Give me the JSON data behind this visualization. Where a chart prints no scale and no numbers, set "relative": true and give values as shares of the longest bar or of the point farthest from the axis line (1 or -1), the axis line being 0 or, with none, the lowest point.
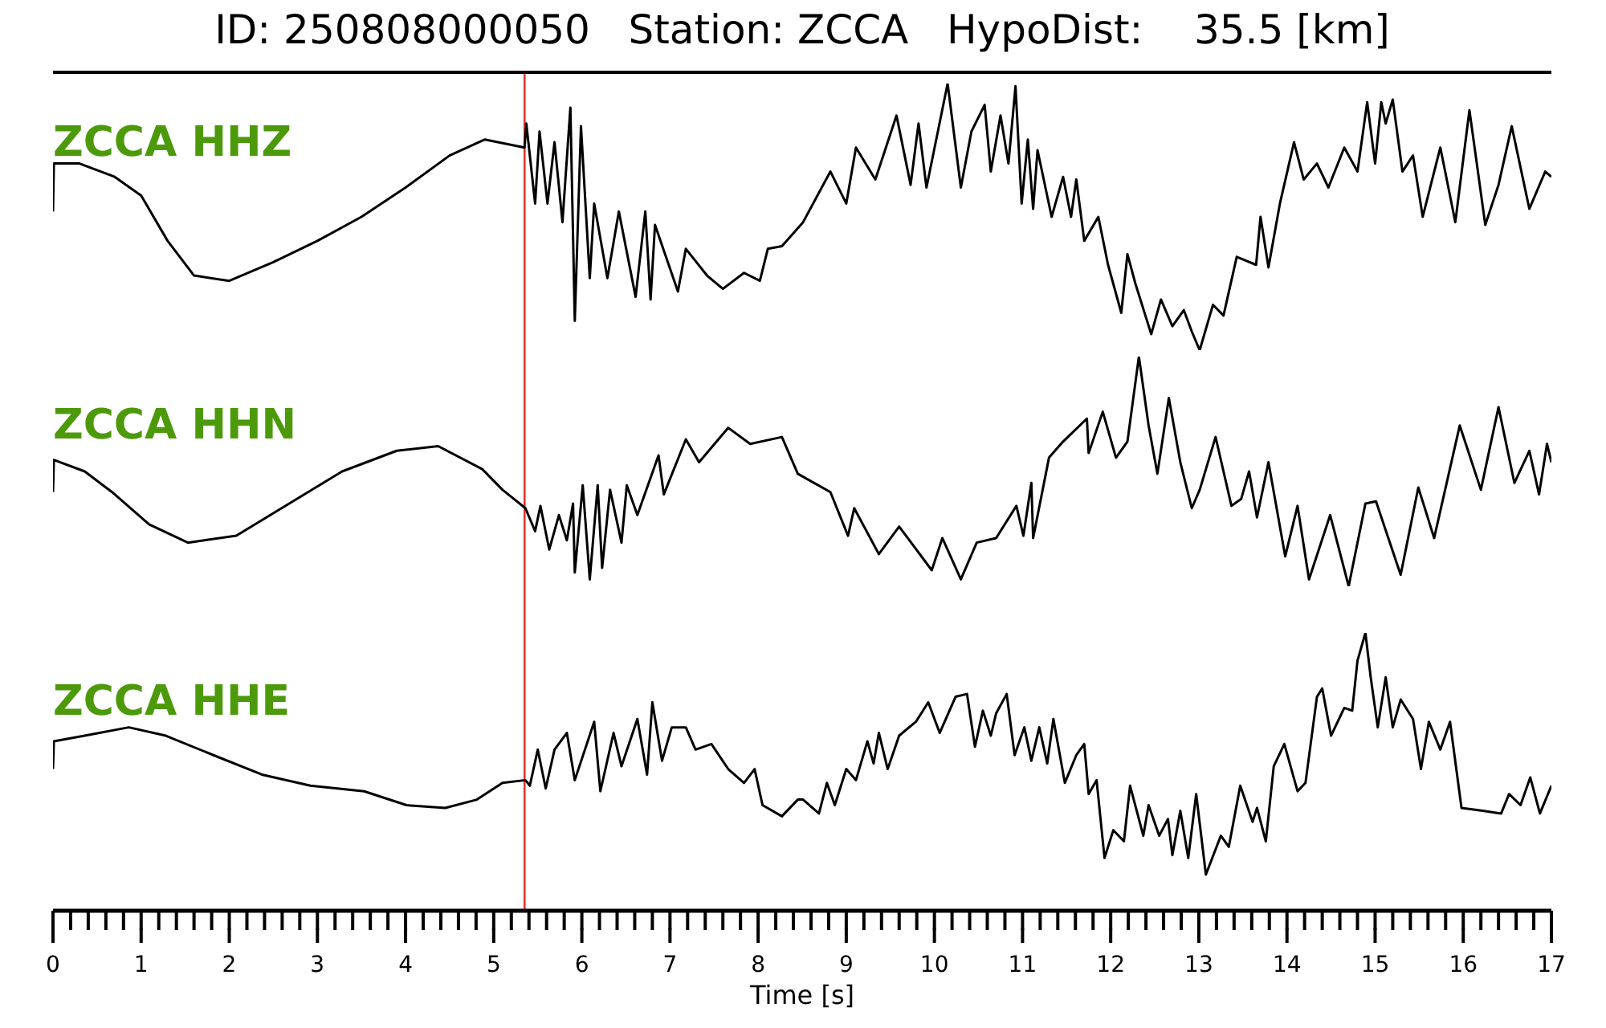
{
  "chart_data": [
    {
      "type": "line",
      "title": "ID: 250808000050   Station: ZCCA   HypoDist:    35.5 [km]",
      "relative": true,
      "xlim": [
        0,
        17
      ],
      "tick_labels": false,
      "ref_lines": [
        {
          "axis": "x",
          "value": 5.35,
          "color": "#e8322a"
        }
      ],
      "series": [
        {
          "name": "ZCCA HHZ",
          "color": "#000000",
          "x": [
            0,
            0.01,
            0.3,
            0.7,
            1.0,
            1.3,
            1.6,
            2.0,
            2.5,
            3.0,
            3.5,
            4.0,
            4.5,
            4.9,
            5.35,
            5.37,
            5.47,
            5.52,
            5.61,
            5.69,
            5.78,
            5.87,
            5.92,
            5.99,
            6.09,
            6.14,
            6.29,
            6.42,
            6.61,
            6.72,
            6.78,
            6.83,
            7.09,
            7.18,
            7.42,
            7.6,
            7.84,
            8.02,
            8.11,
            8.27,
            8.51,
            8.82,
            9.0,
            9.11,
            9.33,
            9.57,
            9.73,
            9.82,
            9.91,
            10.15,
            10.3,
            10.42,
            10.57,
            10.64,
            10.75,
            10.84,
            10.92,
            10.99,
            11.06,
            11.12,
            11.17,
            11.33,
            11.46,
            11.55,
            11.61,
            11.7,
            11.86,
            11.97,
            12.12,
            12.19,
            12.28,
            12.46,
            12.57,
            12.7,
            12.83,
            12.92,
            13.01,
            13.16,
            13.28,
            13.43,
            13.65,
            13.7,
            13.79,
            13.92,
            14.08,
            14.19,
            14.34,
            14.47,
            14.65,
            14.8,
            14.91,
            15.0,
            15.07,
            15.12,
            15.2,
            15.31,
            15.43,
            15.54,
            15.74,
            15.91,
            16.07,
            16.25,
            16.4,
            16.55,
            16.75,
            16.93,
            17.0
          ],
          "values": [
            0.52,
            0.7,
            0.7,
            0.65,
            0.58,
            0.41,
            0.28,
            0.26,
            0.33,
            0.41,
            0.5,
            0.61,
            0.73,
            0.79,
            0.76,
            0.85,
            0.55,
            0.82,
            0.55,
            0.78,
            0.48,
            0.91,
            0.11,
            0.84,
            0.27,
            0.55,
            0.27,
            0.52,
            0.2,
            0.52,
            0.19,
            0.47,
            0.22,
            0.38,
            0.28,
            0.23,
            0.29,
            0.26,
            0.38,
            0.39,
            0.48,
            0.67,
            0.55,
            0.76,
            0.64,
            0.88,
            0.62,
            0.85,
            0.61,
            1.0,
            0.61,
            0.82,
            0.92,
            0.67,
            0.88,
            0.7,
            0.99,
            0.55,
            0.79,
            0.53,
            0.75,
            0.5,
            0.65,
            0.5,
            0.64,
            0.41,
            0.5,
            0.32,
            0.14,
            0.36,
            0.25,
            0.06,
            0.19,
            0.09,
            0.15,
            0.07,
            0,
            0.17,
            0.13,
            0.35,
            0.32,
            0.5,
            0.31,
            0.55,
            0.78,
            0.64,
            0.7,
            0.61,
            0.76,
            0.67,
            0.93,
            0.7,
            0.93,
            0.85,
            0.94,
            0.67,
            0.73,
            0.5,
            0.76,
            0.48,
            0.9,
            0.47,
            0.62,
            0.84,
            0.53,
            0.67,
            0.65
          ]
        }
      ]
    },
    {
      "type": "line",
      "relative": true,
      "xlim": [
        0,
        17
      ],
      "tick_labels": false,
      "ref_lines": [
        {
          "axis": "x",
          "value": 5.35,
          "color": "#e8322a"
        }
      ],
      "series": [
        {
          "name": "ZCCA HHN",
          "color": "#000000",
          "x": [
            0,
            0.01,
            0.36,
            0.67,
            1.09,
            1.53,
            2.08,
            2.68,
            3.28,
            3.9,
            4.37,
            4.87,
            5.1,
            5.36,
            5.47,
            5.53,
            5.63,
            5.74,
            5.83,
            5.9,
            5.92,
            6.01,
            6.09,
            6.18,
            6.23,
            6.32,
            6.45,
            6.51,
            6.63,
            6.87,
            6.93,
            7.18,
            7.33,
            7.66,
            7.91,
            8.27,
            8.45,
            8.82,
            9.02,
            9.09,
            9.37,
            9.6,
            9.97,
            10.09,
            10.3,
            10.48,
            10.7,
            10.93,
            11.01,
            11.1,
            11.12,
            11.3,
            11.46,
            11.73,
            11.75,
            11.91,
            12.06,
            12.19,
            12.32,
            12.43,
            12.53,
            12.66,
            12.79,
            12.92,
            13.01,
            13.19,
            13.37,
            13.48,
            13.57,
            13.66,
            13.79,
            13.98,
            14.12,
            14.25,
            14.49,
            14.7,
            14.89,
            15.01,
            15.29,
            15.49,
            15.67,
            15.96,
            16.2,
            16.4,
            16.58,
            16.75,
            16.86,
            16.95,
            17.0
          ],
          "values": [
            0.41,
            0.55,
            0.5,
            0.41,
            0.27,
            0.19,
            0.22,
            0.36,
            0.5,
            0.59,
            0.61,
            0.51,
            0.42,
            0.34,
            0.24,
            0.35,
            0.16,
            0.31,
            0.2,
            0.36,
            0.06,
            0.44,
            0.03,
            0.44,
            0.08,
            0.42,
            0.19,
            0.44,
            0.31,
            0.57,
            0.4,
            0.64,
            0.54,
            0.69,
            0.62,
            0.65,
            0.49,
            0.41,
            0.22,
            0.34,
            0.14,
            0.26,
            0.07,
            0.21,
            0.03,
            0.19,
            0.21,
            0.35,
            0.22,
            0.45,
            0.21,
            0.56,
            0.63,
            0.73,
            0.58,
            0.76,
            0.56,
            0.63,
            1.0,
            0.7,
            0.49,
            0.82,
            0.54,
            0.34,
            0.42,
            0.65,
            0.35,
            0.38,
            0.5,
            0.3,
            0.54,
            0.13,
            0.35,
            0.03,
            0.31,
            0,
            0.36,
            0.37,
            0.05,
            0.43,
            0.21,
            0.7,
            0.42,
            0.78,
            0.45,
            0.59,
            0.4,
            0.62,
            0.54
          ]
        }
      ]
    },
    {
      "type": "line",
      "relative": true,
      "xlim": [
        0,
        17
      ],
      "tick_labels": "x",
      "xlabel": "Time [s]",
      "xticks": [
        0,
        {
          "value": 0.2,
          "label": null
        },
        {
          "value": 0.4,
          "label": null
        },
        {
          "value": 0.6,
          "label": null
        },
        {
          "value": 0.8,
          "label": null
        },
        1,
        {
          "value": 1.2,
          "label": null
        },
        {
          "value": 1.4,
          "label": null
        },
        {
          "value": 1.6,
          "label": null
        },
        {
          "value": 1.8,
          "label": null
        },
        2,
        {
          "value": 2.2,
          "label": null
        },
        {
          "value": 2.4,
          "label": null
        },
        {
          "value": 2.6,
          "label": null
        },
        {
          "value": 2.8,
          "label": null
        },
        3,
        {
          "value": 3.2,
          "label": null
        },
        {
          "value": 3.4,
          "label": null
        },
        {
          "value": 3.6,
          "label": null
        },
        {
          "value": 3.8,
          "label": null
        },
        4,
        {
          "value": 4.2,
          "label": null
        },
        {
          "value": 4.4,
          "label": null
        },
        {
          "value": 4.6,
          "label": null
        },
        {
          "value": 4.8,
          "label": null
        },
        5,
        {
          "value": 5.2,
          "label": null
        },
        {
          "value": 5.4,
          "label": null
        },
        {
          "value": 5.6,
          "label": null
        },
        {
          "value": 5.8,
          "label": null
        },
        6,
        {
          "value": 6.2,
          "label": null
        },
        {
          "value": 6.4,
          "label": null
        },
        {
          "value": 6.6,
          "label": null
        },
        {
          "value": 6.8,
          "label": null
        },
        7,
        {
          "value": 7.2,
          "label": null
        },
        {
          "value": 7.4,
          "label": null
        },
        {
          "value": 7.6,
          "label": null
        },
        {
          "value": 7.8,
          "label": null
        },
        8,
        {
          "value": 8.2,
          "label": null
        },
        {
          "value": 8.4,
          "label": null
        },
        {
          "value": 8.6,
          "label": null
        },
        {
          "value": 8.8,
          "label": null
        },
        9,
        {
          "value": 9.2,
          "label": null
        },
        {
          "value": 9.4,
          "label": null
        },
        {
          "value": 9.6,
          "label": null
        },
        {
          "value": 9.8,
          "label": null
        },
        10,
        {
          "value": 10.2,
          "label": null
        },
        {
          "value": 10.4,
          "label": null
        },
        {
          "value": 10.6,
          "label": null
        },
        {
          "value": 10.8,
          "label": null
        },
        11,
        {
          "value": 11.2,
          "label": null
        },
        {
          "value": 11.4,
          "label": null
        },
        {
          "value": 11.6,
          "label": null
        },
        {
          "value": 11.8,
          "label": null
        },
        12,
        {
          "value": 12.2,
          "label": null
        },
        {
          "value": 12.4,
          "label": null
        },
        {
          "value": 12.6,
          "label": null
        },
        {
          "value": 12.8,
          "label": null
        },
        13,
        {
          "value": 13.2,
          "label": null
        },
        {
          "value": 13.4,
          "label": null
        },
        {
          "value": 13.6,
          "label": null
        },
        {
          "value": 13.8,
          "label": null
        },
        14,
        {
          "value": 14.2,
          "label": null
        },
        {
          "value": 14.4,
          "label": null
        },
        {
          "value": 14.6,
          "label": null
        },
        {
          "value": 14.8,
          "label": null
        },
        15,
        {
          "value": 15.2,
          "label": null
        },
        {
          "value": 15.4,
          "label": null
        },
        {
          "value": 15.6,
          "label": null
        },
        {
          "value": 15.8,
          "label": null
        },
        16,
        {
          "value": 16.2,
          "label": null
        },
        {
          "value": 16.4,
          "label": null
        },
        {
          "value": 16.6,
          "label": null
        },
        {
          "value": 16.8,
          "label": null
        },
        17
      ],
      "ref_lines": [
        {
          "axis": "x",
          "value": 5.35,
          "color": "#e8322a"
        }
      ],
      "series": [
        {
          "name": "ZCCA HHE",
          "color": "#000000",
          "x": [
            0,
            0.01,
            0.36,
            0.86,
            1.28,
            1.82,
            2.37,
            2.92,
            3.53,
            4.01,
            4.45,
            4.81,
            5.1,
            5.36,
            5.41,
            5.5,
            5.59,
            5.69,
            5.83,
            5.92,
            6.14,
            6.21,
            6.36,
            6.45,
            6.63,
            6.74,
            6.8,
            6.91,
            7.02,
            7.18,
            7.29,
            7.47,
            7.66,
            7.84,
            7.96,
            8.05,
            8.27,
            8.45,
            8.51,
            8.69,
            8.78,
            8.87,
            9.0,
            9.11,
            9.24,
            9.31,
            9.37,
            9.47,
            9.6,
            9.79,
            9.93,
            10.06,
            10.24,
            10.37,
            10.46,
            10.55,
            10.64,
            10.7,
            10.82,
            10.91,
            11.02,
            11.1,
            11.19,
            11.28,
            11.35,
            11.48,
            11.61,
            11.7,
            11.75,
            11.84,
            11.93,
            12.03,
            12.15,
            12.22,
            12.37,
            12.43,
            12.55,
            12.65,
            12.7,
            12.79,
            12.88,
            12.97,
            13.08,
            13.25,
            13.34,
            13.47,
            13.61,
            13.66,
            13.76,
            13.85,
            13.97,
            14.12,
            14.21,
            14.34,
            14.4,
            14.5,
            14.65,
            14.74,
            14.8,
            14.89,
            14.95,
            15.03,
            15.12,
            15.2,
            15.29,
            15.43,
            15.52,
            15.61,
            15.74,
            15.85,
            15.98,
            16.22,
            16.43,
            16.52,
            16.65,
            16.76,
            16.87,
            17.0
          ],
          "values": [
            0.51,
            0.61,
            0.63,
            0.66,
            0.63,
            0.56,
            0.49,
            0.45,
            0.43,
            0.38,
            0.37,
            0.4,
            0.46,
            0.47,
            0.45,
            0.58,
            0.44,
            0.58,
            0.64,
            0.47,
            0.68,
            0.43,
            0.64,
            0.52,
            0.69,
            0.49,
            0.75,
            0.54,
            0.66,
            0.66,
            0.58,
            0.6,
            0.51,
            0.46,
            0.51,
            0.38,
            0.34,
            0.4,
            0.4,
            0.35,
            0.46,
            0.38,
            0.51,
            0.47,
            0.61,
            0.53,
            0.64,
            0.51,
            0.63,
            0.68,
            0.75,
            0.64,
            0.77,
            0.78,
            0.59,
            0.72,
            0.63,
            0.71,
            0.78,
            0.56,
            0.66,
            0.54,
            0.66,
            0.53,
            0.69,
            0.46,
            0.56,
            0.6,
            0.42,
            0.47,
            0.19,
            0.29,
            0.25,
            0.45,
            0.27,
            0.38,
            0.27,
            0.33,
            0.2,
            0.36,
            0.19,
            0.42,
            0.13,
            0.27,
            0.23,
            0.45,
            0.32,
            0.37,
            0.25,
            0.52,
            0.6,
            0.43,
            0.46,
            0.77,
            0.8,
            0.63,
            0.73,
            0.72,
            0.9,
            1.0,
            0.84,
            0.66,
            0.84,
            0.66,
            0.76,
            0.69,
            0.51,
            0.68,
            0.58,
            0.68,
            0.37,
            0.36,
            0.35,
            0.42,
            0.38,
            0.48,
            0.35,
            0.45
          ]
        }
      ]
    }
  ]
}
